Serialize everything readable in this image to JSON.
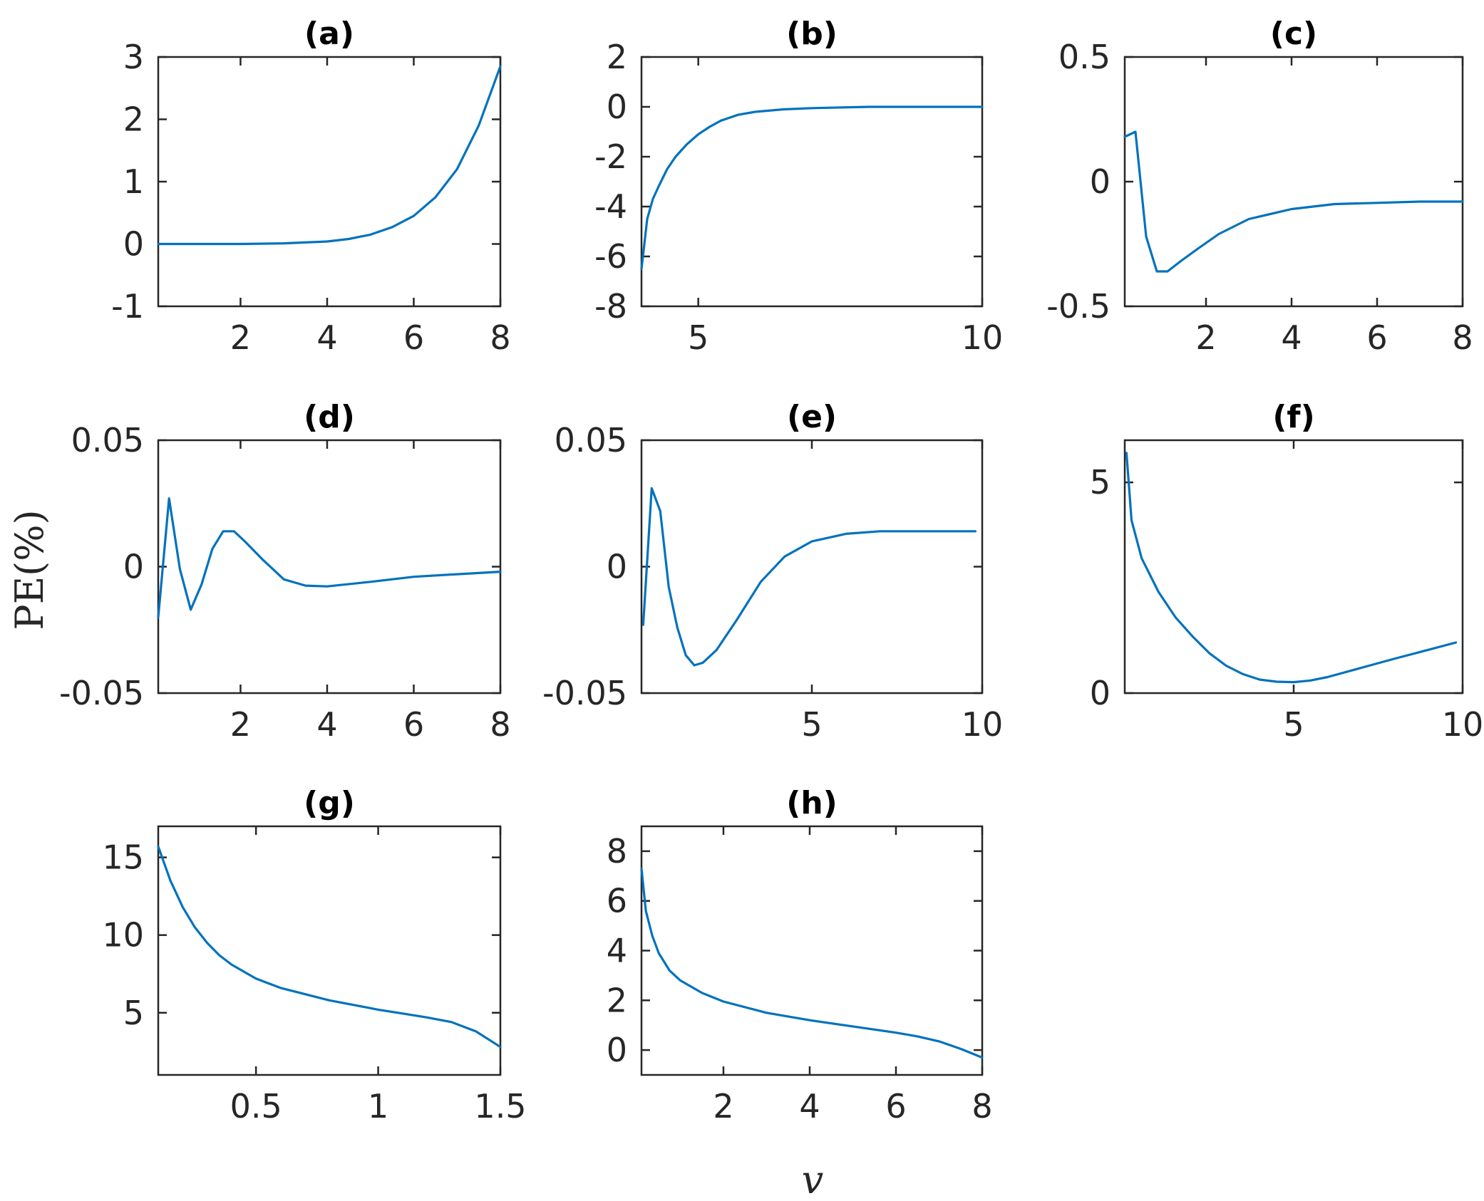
{
  "figure": {
    "ylabel": "PE(%)",
    "xlabel": "v",
    "line_color": "#0072BD"
  },
  "chart_data": [
    {
      "type": "line",
      "title": "(a)",
      "xlabel": "",
      "ylabel": "",
      "xlim": [
        0.1,
        8
      ],
      "ylim": [
        -1,
        3
      ],
      "xticks": [
        2,
        4,
        6,
        8
      ],
      "yticks": [
        -1,
        0,
        1,
        2,
        3
      ],
      "xtick_labels": [
        "2",
        "4",
        "6",
        "8"
      ],
      "ytick_labels": [
        "-1",
        "0",
        "1",
        "2",
        "3"
      ],
      "x": [
        0.1,
        1,
        2,
        3,
        4,
        4.5,
        5,
        5.5,
        6,
        6.5,
        7,
        7.5,
        8
      ],
      "y": [
        0.0,
        0.0,
        0.0,
        0.01,
        0.04,
        0.08,
        0.15,
        0.27,
        0.45,
        0.75,
        1.2,
        1.9,
        2.85
      ]
    },
    {
      "type": "line",
      "title": "(b)",
      "xlabel": "",
      "ylabel": "",
      "xlim": [
        4,
        10
      ],
      "ylim": [
        -8,
        2
      ],
      "xticks": [
        5,
        10
      ],
      "yticks": [
        -8,
        -6,
        -4,
        -2,
        0,
        2
      ],
      "xtick_labels": [
        "5",
        "10"
      ],
      "ytick_labels": [
        "-8",
        "-6",
        "-4",
        "-2",
        "0",
        "2"
      ],
      "x": [
        4.0,
        4.05,
        4.1,
        4.2,
        4.3,
        4.45,
        4.6,
        4.8,
        5.0,
        5.2,
        5.4,
        5.7,
        6.0,
        6.5,
        7,
        8,
        9,
        10
      ],
      "y": [
        -6.5,
        -5.5,
        -4.5,
        -3.7,
        -3.2,
        -2.5,
        -2.0,
        -1.5,
        -1.1,
        -0.8,
        -0.55,
        -0.32,
        -0.2,
        -0.1,
        -0.05,
        0,
        0,
        0
      ]
    },
    {
      "type": "line",
      "title": "(c)",
      "xlabel": "",
      "ylabel": "",
      "xlim": [
        0.1,
        8
      ],
      "ylim": [
        -0.5,
        0.5
      ],
      "xticks": [
        2,
        4,
        6,
        8
      ],
      "yticks": [
        -0.5,
        0,
        0.5
      ],
      "xtick_labels": [
        "2",
        "4",
        "6",
        "8"
      ],
      "ytick_labels": [
        "-0.5",
        "0",
        "0.5"
      ],
      "x": [
        0.1,
        0.35,
        0.6,
        0.85,
        1.1,
        1.4,
        1.8,
        2.3,
        3,
        4,
        5,
        6,
        7,
        8
      ],
      "y": [
        0.18,
        0.2,
        -0.22,
        -0.36,
        -0.36,
        -0.32,
        -0.27,
        -0.21,
        -0.15,
        -0.11,
        -0.09,
        -0.085,
        -0.08,
        -0.08
      ]
    },
    {
      "type": "line",
      "title": "(d)",
      "xlabel": "",
      "ylabel": "",
      "xlim": [
        0.1,
        8
      ],
      "ylim": [
        -0.05,
        0.05
      ],
      "xticks": [
        2,
        4,
        6,
        8
      ],
      "yticks": [
        -0.05,
        0,
        0.05
      ],
      "xtick_labels": [
        "2",
        "4",
        "6",
        "8"
      ],
      "ytick_labels": [
        "-0.05",
        "0",
        "0.05"
      ],
      "x": [
        0.1,
        0.35,
        0.6,
        0.85,
        1.1,
        1.35,
        1.6,
        1.85,
        2.1,
        2.5,
        3,
        3.5,
        4,
        5,
        6,
        7,
        8
      ],
      "y": [
        -0.02,
        0.027,
        -0.001,
        -0.017,
        -0.007,
        0.007,
        0.014,
        0.014,
        0.01,
        0.003,
        -0.005,
        -0.0075,
        -0.0078,
        -0.006,
        -0.004,
        -0.003,
        -0.002
      ]
    },
    {
      "type": "line",
      "title": "(e)",
      "xlabel": "",
      "ylabel": "",
      "xlim": [
        0,
        10
      ],
      "ylim": [
        -0.05,
        0.05
      ],
      "xticks": [
        5,
        10
      ],
      "yticks": [
        -0.05,
        0,
        0.05
      ],
      "xtick_labels": [
        "5",
        "10"
      ],
      "ytick_labels": [
        "-0.05",
        "0",
        "0.05"
      ],
      "x": [
        0.05,
        0.3,
        0.55,
        0.8,
        1.05,
        1.3,
        1.55,
        1.8,
        2.2,
        2.8,
        3.5,
        4.2,
        5,
        6,
        7,
        8,
        9,
        9.8
      ],
      "y": [
        -0.023,
        0.031,
        0.022,
        -0.008,
        -0.024,
        -0.035,
        -0.039,
        -0.038,
        -0.033,
        -0.021,
        -0.006,
        0.004,
        0.01,
        0.013,
        0.014,
        0.014,
        0.014,
        0.014
      ]
    },
    {
      "type": "line",
      "title": "(f)",
      "xlabel": "",
      "ylabel": "",
      "xlim": [
        0,
        10
      ],
      "ylim": [
        0,
        6
      ],
      "xticks": [
        5,
        10
      ],
      "yticks": [
        0,
        5
      ],
      "xtick_labels": [
        "5",
        "10"
      ],
      "ytick_labels": [
        "0",
        "5"
      ],
      "x": [
        0.05,
        0.2,
        0.5,
        1,
        1.5,
        2,
        2.5,
        3,
        3.5,
        4,
        4.5,
        5,
        5.5,
        6,
        7,
        8,
        9,
        9.8
      ],
      "y": [
        5.7,
        4.1,
        3.2,
        2.4,
        1.8,
        1.35,
        0.95,
        0.65,
        0.45,
        0.32,
        0.27,
        0.26,
        0.3,
        0.38,
        0.6,
        0.82,
        1.03,
        1.2
      ]
    },
    {
      "type": "line",
      "title": "(g)",
      "xlabel": "",
      "ylabel": "",
      "xlim": [
        0.1,
        1.5
      ],
      "ylim": [
        1,
        17
      ],
      "xticks": [
        0.5,
        1,
        1.5
      ],
      "yticks": [
        5,
        10,
        15
      ],
      "xtick_labels": [
        "0.5",
        "1",
        "1.5"
      ],
      "ytick_labels": [
        "5",
        "10",
        "15"
      ],
      "x": [
        0.1,
        0.15,
        0.2,
        0.25,
        0.3,
        0.35,
        0.4,
        0.5,
        0.6,
        0.7,
        0.8,
        0.9,
        1.0,
        1.1,
        1.2,
        1.3,
        1.4,
        1.45,
        1.5
      ],
      "y": [
        15.7,
        13.5,
        11.8,
        10.5,
        9.5,
        8.7,
        8.1,
        7.2,
        6.6,
        6.2,
        5.8,
        5.5,
        5.2,
        4.95,
        4.7,
        4.4,
        3.8,
        3.3,
        2.8
      ]
    },
    {
      "type": "line",
      "title": "(h)",
      "xlabel": "v",
      "ylabel": "",
      "xlim": [
        0.1,
        8
      ],
      "ylim": [
        -1,
        9
      ],
      "xticks": [
        2,
        4,
        6,
        8
      ],
      "yticks": [
        0,
        2,
        4,
        6,
        8
      ],
      "xtick_labels": [
        "2",
        "4",
        "6",
        "8"
      ],
      "ytick_labels": [
        "0",
        "2",
        "4",
        "6",
        "8"
      ],
      "x": [
        0.1,
        0.2,
        0.35,
        0.5,
        0.75,
        1,
        1.5,
        2,
        3,
        4,
        5,
        6,
        6.5,
        7,
        7.5,
        8
      ],
      "y": [
        7.3,
        5.6,
        4.6,
        3.9,
        3.2,
        2.8,
        2.3,
        1.95,
        1.5,
        1.2,
        0.95,
        0.7,
        0.55,
        0.35,
        0.05,
        -0.3
      ]
    }
  ]
}
